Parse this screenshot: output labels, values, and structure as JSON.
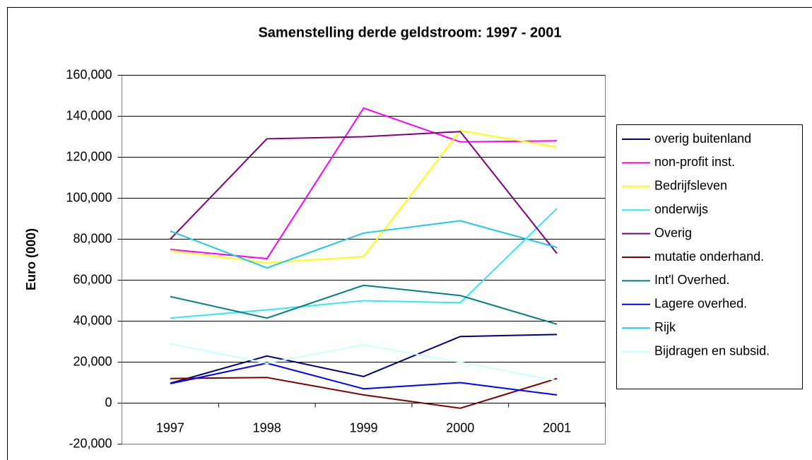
{
  "chart_data": {
    "type": "line",
    "title": "Samenstelling derde geldstroom: 1997 - 2001",
    "y_label": "Euro (000)",
    "categories": [
      "1997",
      "1998",
      "1999",
      "2000",
      "2001"
    ],
    "series": [
      {
        "name": "overig buitenland",
        "color": "#000080",
        "values": [
          9700,
          23000,
          13000,
          32500,
          33500
        ]
      },
      {
        "name": "non-profit inst.",
        "color": "#ff00ff",
        "values": [
          75000,
          70500,
          144000,
          127500,
          128000
        ]
      },
      {
        "name": "Bedrijfsleven",
        "color": "#ffff00",
        "values": [
          74500,
          68500,
          71500,
          133000,
          125000
        ]
      },
      {
        "name": "onderwijs",
        "color": "#33e8f0",
        "values": [
          41500,
          45500,
          50000,
          49000,
          95000
        ]
      },
      {
        "name": "Overig",
        "color": "#800080",
        "values": [
          80000,
          129000,
          130000,
          132500,
          73000
        ]
      },
      {
        "name": "mutatie onderhand.",
        "color": "#800000",
        "values": [
          12000,
          12500,
          4000,
          -2500,
          12000
        ]
      },
      {
        "name": "Int'l Overhed.",
        "color": "#008080",
        "values": [
          52000,
          41500,
          57500,
          52500,
          38500
        ]
      },
      {
        "name": "Lagere overhed.",
        "color": "#0000ff",
        "values": [
          9500,
          19500,
          7000,
          10000,
          4000
        ]
      },
      {
        "name": "Rijk",
        "color": "#1ec8f0",
        "values": [
          84000,
          66000,
          83000,
          89000,
          76000
        ]
      },
      {
        "name": "Bijdragen en subsid.",
        "color": "#ccffff",
        "values": [
          29000,
          19500,
          28500,
          20000,
          11000
        ]
      }
    ],
    "ylim": [
      -20000,
      160000
    ],
    "yticks": [
      {
        "value": -20000,
        "label": "-20,000"
      },
      0,
      {
        "value": 20000,
        "label": "20,000"
      },
      {
        "value": 40000,
        "label": "40,000"
      },
      {
        "value": 60000,
        "label": "60,000"
      },
      {
        "value": 80000,
        "label": "80,000"
      },
      {
        "value": 100000,
        "label": "100,000"
      },
      {
        "value": 120000,
        "label": "120,000"
      },
      {
        "value": 140000,
        "label": "140,000"
      },
      {
        "value": 160000,
        "label": "160,000"
      }
    ],
    "grid": true,
    "legend": "right"
  }
}
